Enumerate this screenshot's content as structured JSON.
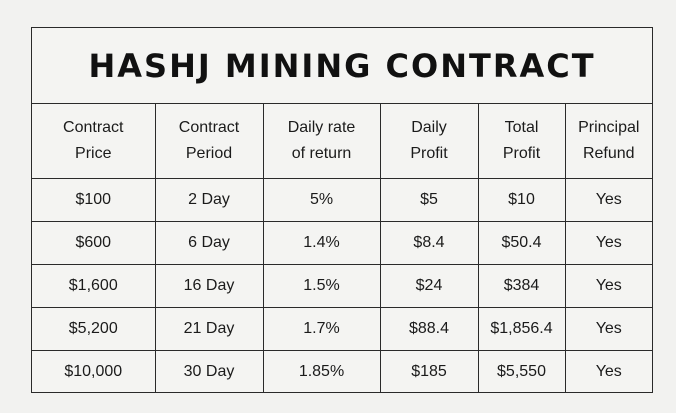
{
  "title": "HASHJ MINING CONTRACT",
  "headers": [
    [
      "Contract",
      "Price"
    ],
    [
      "Contract",
      "Period"
    ],
    [
      "Daily rate",
      "of return"
    ],
    [
      "Daily",
      "Profit"
    ],
    [
      "Total",
      "Profit"
    ],
    [
      "Principal",
      "Refund"
    ]
  ],
  "rows": [
    [
      "$100",
      "2 Day",
      "5%",
      "$5",
      "$10",
      "Yes"
    ],
    [
      "$600",
      "6 Day",
      "1.4%",
      "$8.4",
      "$50.4",
      "Yes"
    ],
    [
      "$1,600",
      "16 Day",
      "1.5%",
      "$24",
      "$384",
      "Yes"
    ],
    [
      "$5,200",
      "21 Day",
      "1.7%",
      "$88.4",
      "$1,856.4",
      "Yes"
    ],
    [
      "$10,000",
      "30 Day",
      "1.85%",
      "$185",
      "$5,550",
      "Yes"
    ]
  ]
}
